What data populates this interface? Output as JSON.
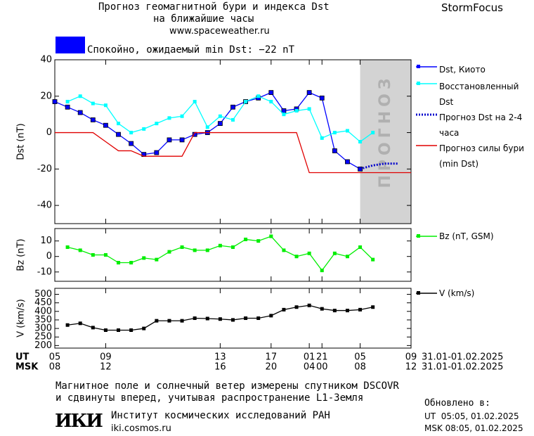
{
  "header": {
    "title": "Прогноз геомагнитной бури и индекса Dst",
    "subtitle": "на ближайшие часы",
    "url": "www.spaceweather.ru",
    "brand": "StormFocus",
    "status": "Спокойно, ожидаемый min Dst: −22 nT",
    "status_color": "#0000ff"
  },
  "chart_data": [
    {
      "type": "line",
      "y_label": "Dst (nT)",
      "xlim": [
        0,
        28
      ],
      "ylim": [
        -50,
        40
      ],
      "yticks": [
        -40,
        -20,
        0,
        20,
        40
      ],
      "forecast_span": [
        24,
        28
      ],
      "forecast_label": "ПРОГНОЗ",
      "series": [
        {
          "name": "Dst, Киото",
          "color": "#0000ff",
          "marker": "square",
          "line_style": "solid",
          "x": [
            0,
            1,
            2,
            3,
            4,
            5,
            6,
            7,
            8,
            9,
            10,
            11,
            12,
            13,
            14,
            15,
            16,
            17,
            18,
            19,
            20,
            21,
            22,
            23,
            24
          ],
          "values": [
            17,
            14,
            11,
            7,
            4,
            -1,
            -6,
            -12,
            -11,
            -4,
            -4,
            -1,
            0,
            5,
            14,
            17,
            19,
            22,
            12,
            13,
            22,
            19,
            -10,
            -16,
            -20
          ]
        },
        {
          "name": "Восстановленный Dst",
          "color": "#00ffff",
          "marker": "square",
          "line_style": "solid",
          "x": [
            1,
            2,
            3,
            4,
            5,
            6,
            7,
            8,
            9,
            10,
            11,
            12,
            13,
            14,
            15,
            16,
            17,
            18,
            19,
            20,
            21,
            22,
            23,
            24,
            25
          ],
          "values": [
            17,
            20,
            16,
            15,
            5,
            0,
            2,
            5,
            8,
            9,
            17,
            3,
            9,
            7,
            17,
            20,
            17,
            10,
            12,
            13,
            -3,
            0,
            1,
            -5,
            0
          ]
        },
        {
          "name": "Прогноз Dst на 2-4 часа",
          "color": "#0000cc",
          "marker": "none",
          "line_style": "dotted",
          "x": [
            24,
            25,
            26,
            27
          ],
          "values": [
            -20,
            -18,
            -17,
            -17
          ]
        },
        {
          "name": "Прогноз силы бури (min Dst)",
          "color": "#e00000",
          "marker": "none",
          "line_style": "solid",
          "x": [
            0,
            3,
            4,
            5,
            6,
            7,
            10,
            11,
            19,
            20,
            28
          ],
          "values": [
            0,
            0,
            -5,
            -10,
            -10,
            -13,
            -13,
            0,
            0,
            -22,
            -22
          ]
        }
      ]
    },
    {
      "type": "line",
      "y_label": "Bz (nT)",
      "xlim": [
        0,
        28
      ],
      "ylim": [
        -16,
        18
      ],
      "yticks": [
        -10,
        0,
        10
      ],
      "series": [
        {
          "name": "Bz (nT, GSM)",
          "color": "#00ee00",
          "marker": "square",
          "line_style": "solid",
          "x": [
            1,
            2,
            3,
            4,
            5,
            6,
            7,
            8,
            9,
            10,
            11,
            12,
            13,
            14,
            15,
            16,
            17,
            18,
            19,
            20,
            21,
            22,
            23,
            24,
            25
          ],
          "values": [
            6,
            4,
            1,
            1,
            -4,
            -4,
            -1,
            -2,
            3,
            6,
            4,
            4,
            7,
            6,
            11,
            10,
            13,
            4,
            0,
            2,
            -9,
            2,
            0,
            6,
            -2
          ]
        }
      ]
    },
    {
      "type": "line",
      "y_label": "V (km/s)",
      "xlim": [
        0,
        28
      ],
      "ylim": [
        185,
        535
      ],
      "yticks": [
        200,
        250,
        300,
        350,
        400,
        450,
        500
      ],
      "x_label": "UT",
      "x2_label": "MSK",
      "x_date": "31.01-01.02.2025",
      "x2_date": "31.01-01.02.2025",
      "xticks": [
        {
          "value": 0,
          "label": "05"
        },
        {
          "value": 4,
          "label": "09"
        },
        13,
        17,
        21,
        {
          "value": 20,
          "label": "01"
        },
        {
          "value": 24,
          "label": "05"
        },
        {
          "value": 28,
          "label": "09"
        }
      ],
      "xticks_msk": [
        "08",
        "12",
        "16",
        "20",
        "00",
        "04",
        "08",
        "12"
      ],
      "series": [
        {
          "name": "V (km/s)",
          "color": "#000000",
          "marker": "square",
          "line_style": "solid",
          "x": [
            1,
            2,
            3,
            4,
            5,
            6,
            7,
            8,
            9,
            10,
            11,
            12,
            13,
            14,
            15,
            16,
            17,
            18,
            19,
            20,
            21,
            22,
            23,
            24,
            25
          ],
          "values": [
            320,
            330,
            305,
            290,
            290,
            290,
            300,
            345,
            345,
            345,
            360,
            358,
            355,
            350,
            360,
            360,
            375,
            410,
            425,
            435,
            415,
            405,
            405,
            410,
            425
          ]
        }
      ]
    }
  ],
  "footer": {
    "note_1": "Магнитное поле и солнечный ветер измерены спутником DSCOVR",
    "note_2": "и сдвинуты вперед, учитывая распространение L1-Земля",
    "logo": "ИКИ",
    "institute": "Институт космических исследований РАН",
    "site": "iki.cosmos.ru",
    "updated": "Обновлено в:",
    "updated_ut": "UT  05:05, 01.02.2025",
    "updated_msk": "MSK 08:05, 01.02.2025"
  }
}
